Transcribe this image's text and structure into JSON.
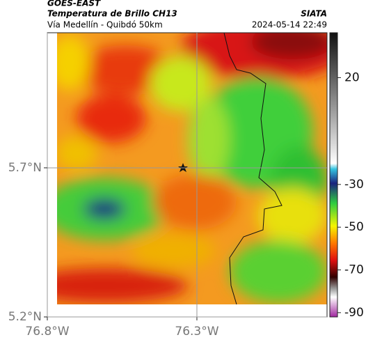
{
  "header": {
    "product": "GOES-EAST",
    "title": "Temperatura de Brillo CH13",
    "subtitle": "Vía Medellín - Quibdó 50km",
    "source": "SIATA",
    "timestamp": "2024-05-14 22:49"
  },
  "map": {
    "xlim": [
      -76.8,
      -75.865
    ],
    "ylim": [
      5.2,
      6.153
    ],
    "xticks": [
      {
        "value": -76.8,
        "label": "76.8°W"
      },
      {
        "value": -76.3,
        "label": "76.3°W"
      }
    ],
    "yticks": [
      {
        "value": 5.7,
        "label": "5.7°N"
      },
      {
        "value": 5.2,
        "label": "5.2°N"
      }
    ],
    "grid": true
  },
  "colorbar": {
    "lim": [
      -92,
      41
    ],
    "ticks": [
      20,
      -30,
      -50,
      -70,
      -90
    ]
  }
}
